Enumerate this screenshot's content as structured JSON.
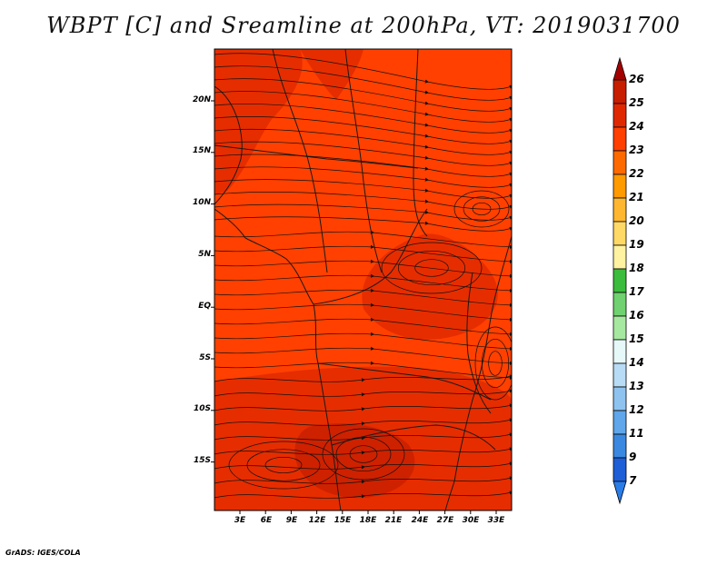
{
  "title": "WBPT [C] and Sreamline at 200hPa, VT: 2019031700",
  "footer": "GrADS: IGES/COLA",
  "map": {
    "lat_labels": [
      "20N",
      "15N",
      "10N",
      "5N",
      "EQ",
      "5S",
      "10S",
      "15S"
    ],
    "lon_labels": [
      "3E",
      "6E",
      "9E",
      "12E",
      "15E",
      "18E",
      "21E",
      "24E",
      "27E",
      "30E",
      "33E"
    ],
    "base_color": "#ff4000",
    "warm_color": "#e02800",
    "warmest_color": "#c81e00",
    "coast_color": "#1a1a1a"
  },
  "colorbar": {
    "labels": [
      "26",
      "25",
      "24",
      "23",
      "22",
      "21",
      "20",
      "19",
      "18",
      "17",
      "16",
      "15",
      "14",
      "13",
      "12",
      "11",
      "9",
      "7"
    ],
    "colors": [
      "#a50000",
      "#c81e00",
      "#e02800",
      "#ff4000",
      "#ff6a00",
      "#ff9a00",
      "#ffb732",
      "#ffd966",
      "#fff2a0",
      "#3cbc3c",
      "#6fd16f",
      "#a6e8a0",
      "#e6f8f8",
      "#b8dcf5",
      "#8ec3f0",
      "#5fa6ea",
      "#3b88e0",
      "#1e5fd8",
      "#2a7ce8"
    ]
  }
}
